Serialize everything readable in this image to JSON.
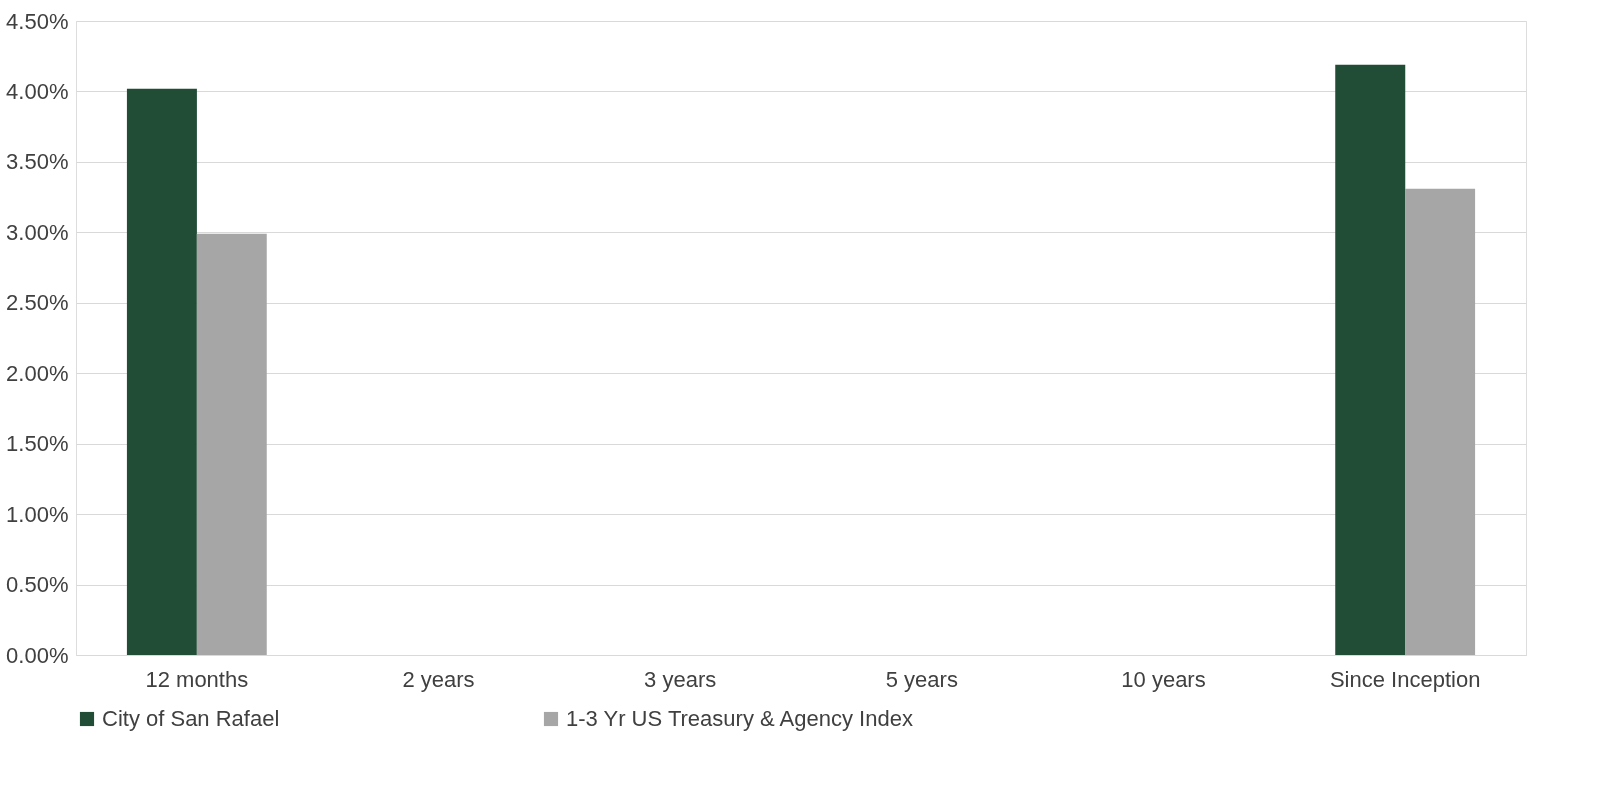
{
  "chart_data": {
    "type": "bar",
    "categories": [
      "12 months",
      "2 years",
      "3 years",
      "5 years",
      "10 years",
      "Since Inception"
    ],
    "series": [
      {
        "name": "City of San Rafael",
        "color": "#214d37",
        "values": [
          4.02,
          null,
          null,
          null,
          null,
          4.19
        ]
      },
      {
        "name": "1-3 Yr US Treasury & Agency Index",
        "color": "#a6a6a6",
        "values": [
          2.99,
          null,
          null,
          null,
          null,
          3.31
        ]
      }
    ],
    "ylim": [
      0,
      4.5
    ],
    "yticks": [
      {
        "value": 0,
        "label": "0.00%"
      },
      {
        "value": 0.5,
        "label": "0.50%"
      },
      {
        "value": 1,
        "label": "1.00%"
      },
      {
        "value": 1.5,
        "label": "1.50%"
      },
      {
        "value": 2,
        "label": "2.00%"
      },
      {
        "value": 2.5,
        "label": "2.50%"
      },
      {
        "value": 3,
        "label": "3.00%"
      },
      {
        "value": 3.5,
        "label": "3.50%"
      },
      {
        "value": 4,
        "label": "4.00%"
      },
      {
        "value": 4.5,
        "label": "4.50%"
      }
    ],
    "grid": "y",
    "legend": "bottom"
  }
}
